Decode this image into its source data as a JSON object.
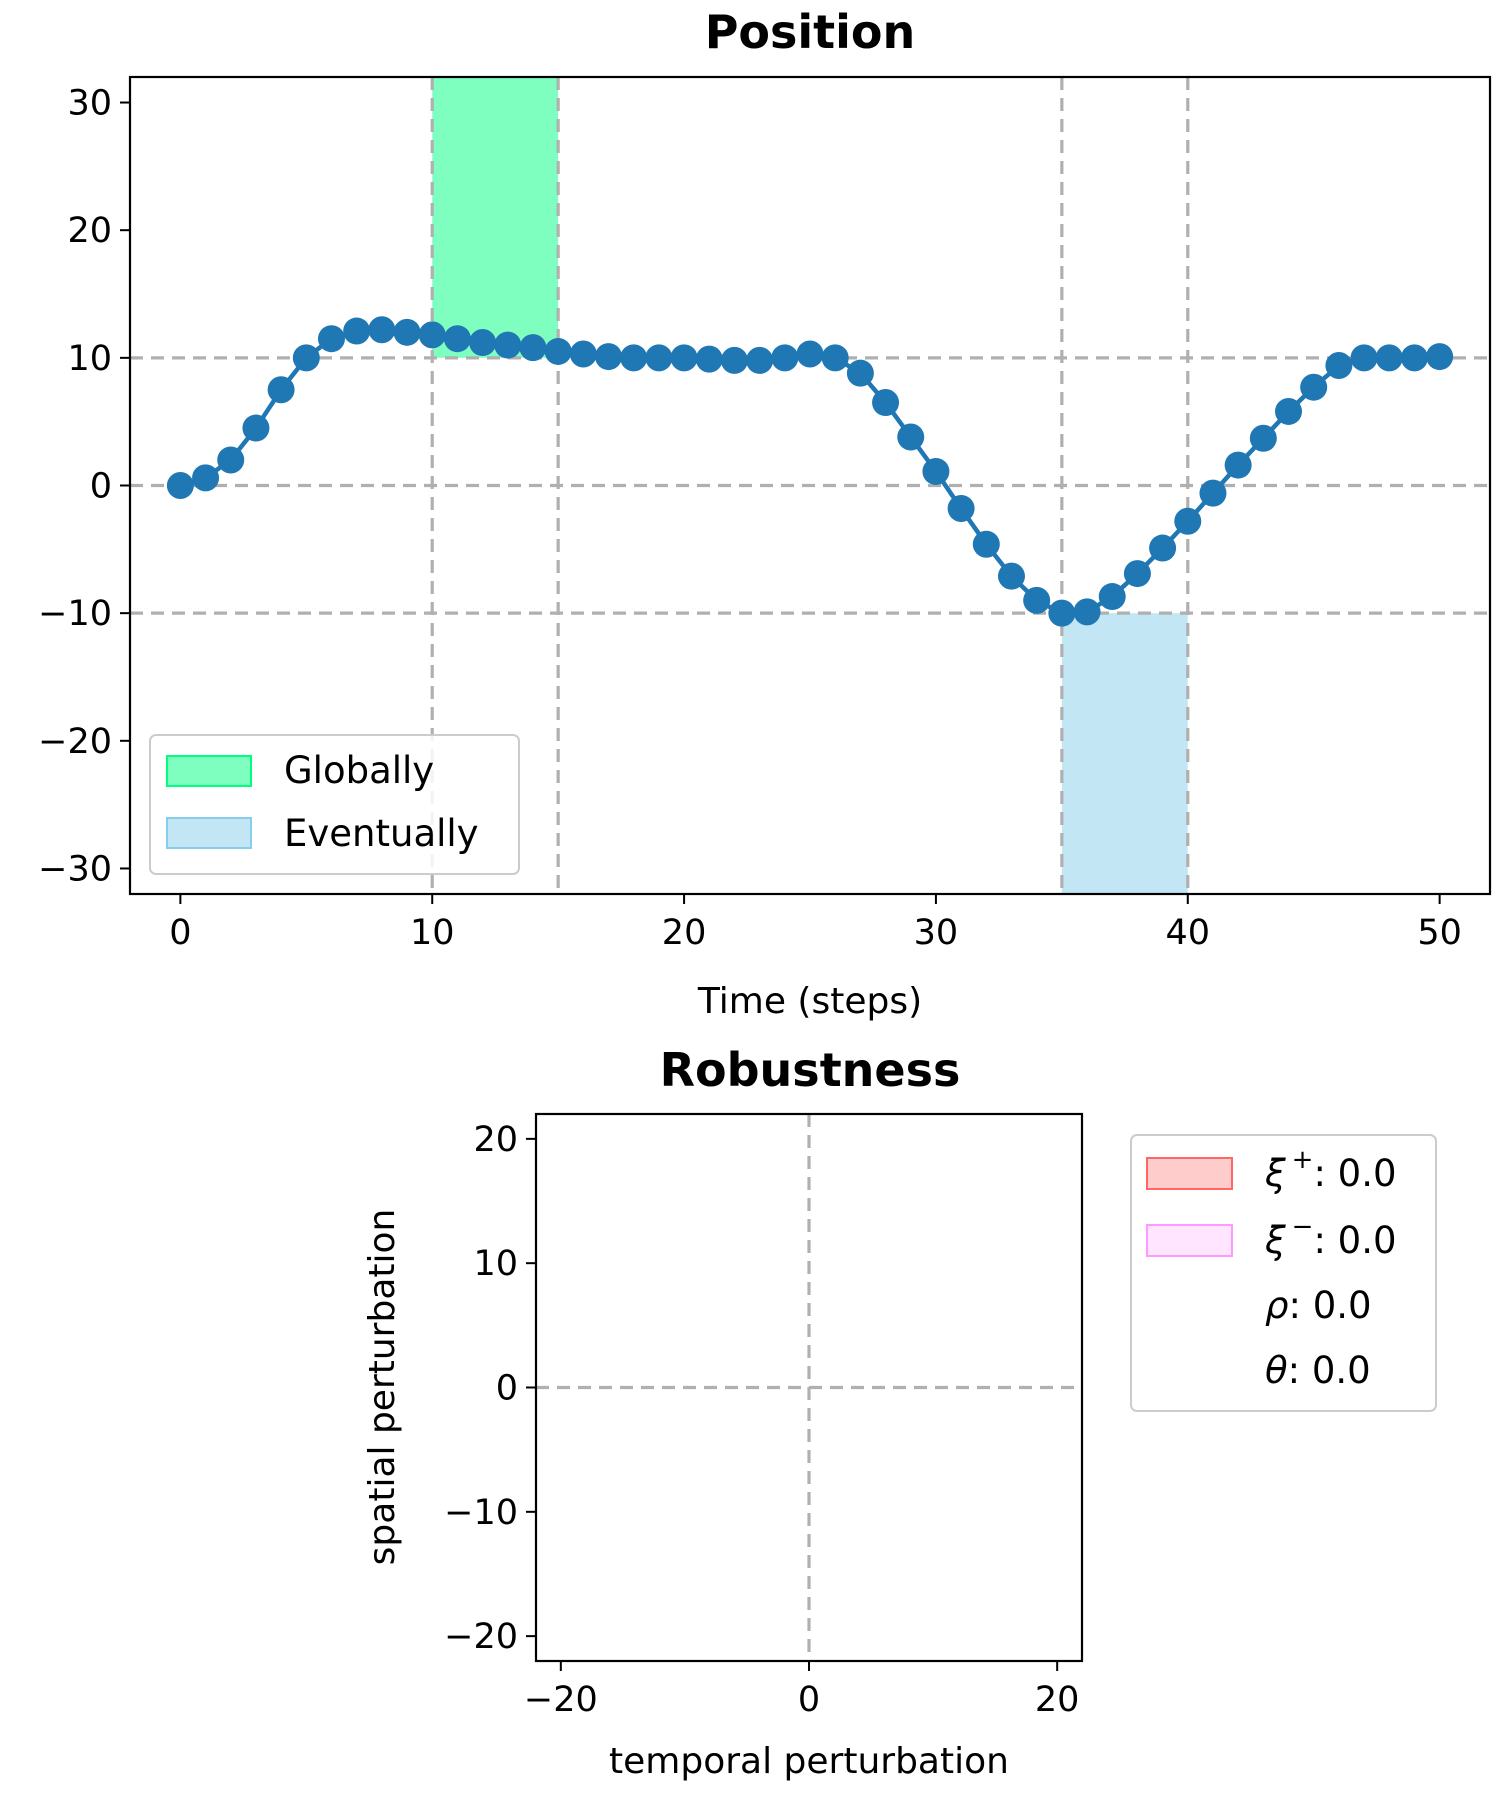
{
  "chart_data": [
    {
      "type": "line",
      "title": "Position",
      "xlabel": "Time (steps)",
      "ylabel": "",
      "xlim": [
        -2,
        52
      ],
      "ylim": [
        -32,
        32
      ],
      "xticks": [
        0,
        10,
        20,
        30,
        40,
        50
      ],
      "yticks": [
        30,
        20,
        10,
        0,
        -10,
        -20,
        -30
      ],
      "xtick_labels": [
        "0",
        "10",
        "20",
        "30",
        "40",
        "50"
      ],
      "ytick_labels": [
        "30",
        "20",
        "10",
        "0",
        "−10",
        "−20",
        "−30"
      ],
      "grid_x": [
        10,
        15,
        35,
        40
      ],
      "grid_y": [
        10,
        0,
        -10
      ],
      "series": [
        {
          "color": "#1f77b4",
          "x": [
            0,
            1,
            2,
            3,
            4,
            5,
            6,
            7,
            8,
            9,
            10,
            11,
            12,
            13,
            14,
            15,
            16,
            17,
            18,
            19,
            20,
            21,
            22,
            23,
            24,
            25,
            26,
            27,
            28,
            29,
            30,
            31,
            32,
            33,
            34,
            35,
            36,
            37,
            38,
            39,
            40,
            41,
            42,
            43,
            44,
            45,
            46,
            47,
            48,
            49,
            50
          ],
          "y": [
            0,
            0.6,
            2.0,
            4.5,
            7.5,
            10.0,
            11.5,
            12.1,
            12.2,
            12.0,
            11.8,
            11.5,
            11.2,
            11.0,
            10.8,
            10.5,
            10.3,
            10.1,
            10.0,
            10.0,
            10.0,
            9.9,
            9.8,
            9.8,
            10.0,
            10.3,
            10.0,
            8.8,
            6.5,
            3.8,
            1.1,
            -1.8,
            -4.6,
            -7.1,
            -9.0,
            -10.0,
            -9.9,
            -8.7,
            -6.9,
            -4.9,
            -2.8,
            -0.6,
            1.6,
            3.7,
            5.8,
            7.7,
            9.4,
            10.0,
            10.0,
            10.0,
            10.1
          ]
        }
      ],
      "regions": [
        {
          "label": "Globally",
          "x": [
            10,
            15
          ],
          "y": [
            10,
            32
          ],
          "color": "#00ff80",
          "edge": "#00cc66"
        },
        {
          "label": "Eventually",
          "x": [
            35,
            40
          ],
          "y": [
            -32,
            -10
          ],
          "color": "#87ceeb",
          "edge": "#6cb4d8"
        }
      ],
      "legend": {
        "placement": "lower-left",
        "entries": [
          "Globally",
          "Eventually"
        ]
      }
    },
    {
      "type": "scatter",
      "title": "Robustness",
      "xlabel": "temporal perturbation",
      "ylabel": "spatial perturbation",
      "xlim": [
        -22,
        22
      ],
      "ylim": [
        -22,
        22
      ],
      "xticks": [
        -20,
        0,
        20
      ],
      "yticks": [
        20,
        10,
        0,
        -10,
        -20
      ],
      "xtick_labels": [
        "−20",
        "0",
        "20"
      ],
      "ytick_labels": [
        "20",
        "10",
        "0",
        "−10",
        "−20"
      ],
      "grid_x": [
        0
      ],
      "grid_y": [
        0
      ],
      "series": [],
      "legend": {
        "placement": "outside-right",
        "entries": [
          {
            "symbol": "ξ",
            "sup": "+",
            "text": ": 0.0",
            "color": "#ff9999",
            "edge": "#ff6666"
          },
          {
            "symbol": "ξ",
            "sup": "−",
            "text": ": 0.0",
            "color": "#ffccff",
            "edge": "#ff99ff"
          },
          {
            "symbol": "ρ",
            "text": ": 0.0"
          },
          {
            "symbol": "θ",
            "text": ": 0.0"
          }
        ]
      }
    }
  ]
}
